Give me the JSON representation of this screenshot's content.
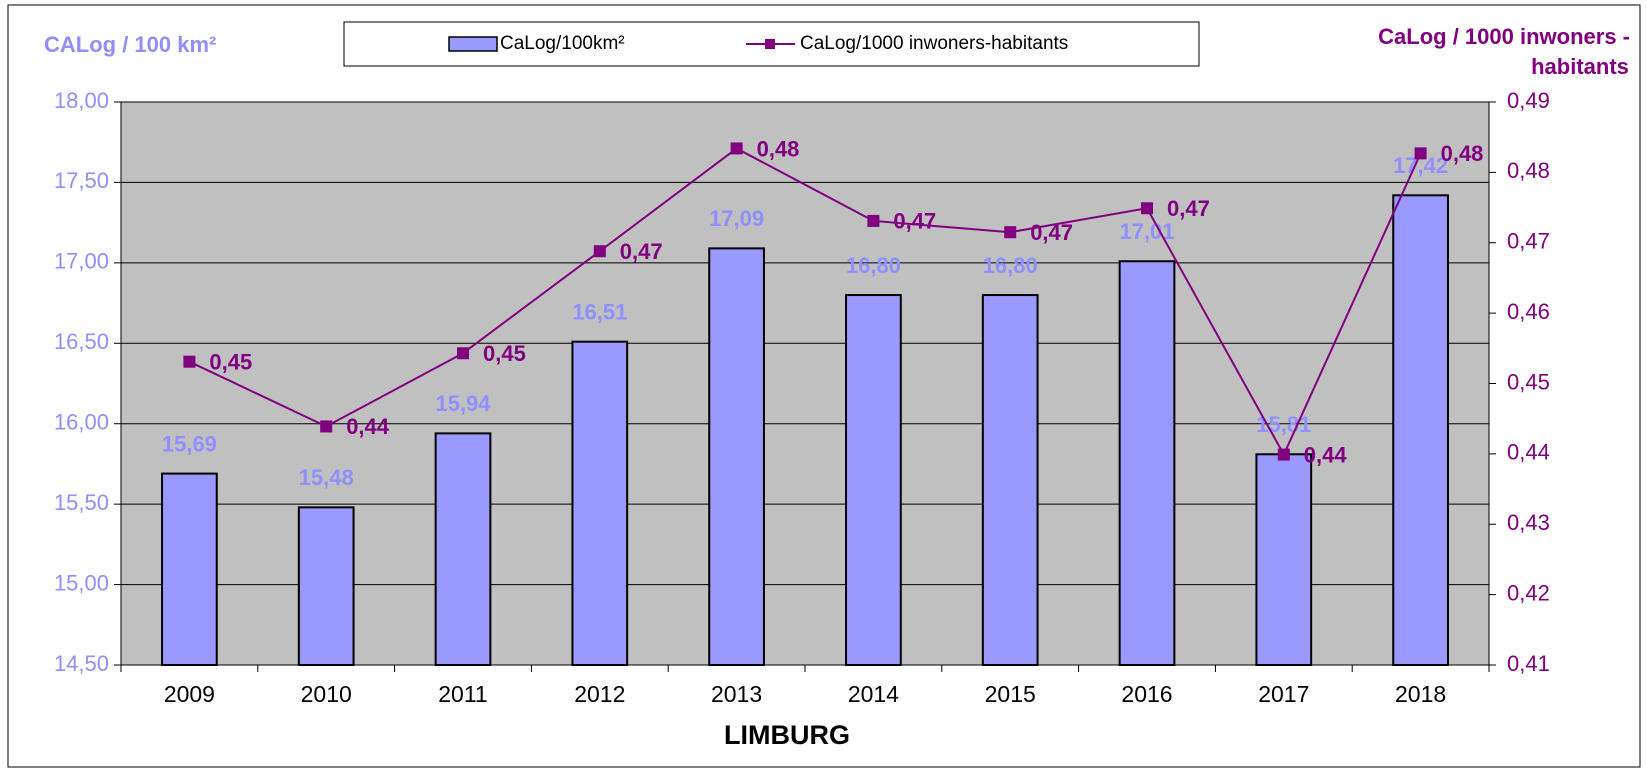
{
  "chart_data": {
    "type": "bar_line",
    "title": "LIMBURG",
    "ylabel": "CALog / 100 km²",
    "y2label": [
      "CaLog / 1000 inwoners -",
      "habitants"
    ],
    "categories": [
      "2009",
      "2010",
      "2011",
      "2012",
      "2013",
      "2014",
      "2015",
      "2016",
      "2017",
      "2018"
    ],
    "series": [
      {
        "name": "CaLog/100km²",
        "type": "bar",
        "color": "#9999ff",
        "label_color": "#8f8fff",
        "values": [
          15.69,
          15.48,
          15.94,
          16.51,
          17.09,
          16.8,
          16.8,
          17.01,
          15.81,
          17.42
        ],
        "value_labels": [
          "15,69",
          "15,48",
          "15,94",
          "16,51",
          "17,09",
          "16,80",
          "16,80",
          "17,01",
          "15,81",
          "17,42"
        ]
      },
      {
        "name": "CaLog/1000 inwoners-habitants",
        "type": "line",
        "axis": "y2",
        "color": "#800080",
        "values": [
          0.4531,
          0.4439,
          0.4543,
          0.4688,
          0.4834,
          0.4731,
          0.4715,
          0.4749,
          0.4399,
          0.4827
        ],
        "value_labels": [
          "0,45",
          "0,44",
          "0,45",
          "0,47",
          "0,48",
          "0,47",
          "0,47",
          "0,47",
          "0,44",
          "0,48"
        ]
      }
    ],
    "ylim": [
      14.5,
      18.0
    ],
    "yticks": [
      {
        "value": 14.5,
        "label": "14,50"
      },
      {
        "value": 15.0,
        "label": "15,00"
      },
      {
        "value": 15.5,
        "label": "15,50"
      },
      {
        "value": 16.0,
        "label": "16,00"
      },
      {
        "value": 16.5,
        "label": "16,50"
      },
      {
        "value": 17.0,
        "label": "17,00"
      },
      {
        "value": 17.5,
        "label": "17,50"
      },
      {
        "value": 18.0,
        "label": "18,00"
      }
    ],
    "y2lim": [
      0.41,
      0.49
    ],
    "y2ticks": [
      {
        "value": 0.41,
        "label": "0,41"
      },
      {
        "value": 0.42,
        "label": "0,42"
      },
      {
        "value": 0.43,
        "label": "0,43"
      },
      {
        "value": 0.44,
        "label": "0,44"
      },
      {
        "value": 0.45,
        "label": "0,45"
      },
      {
        "value": 0.46,
        "label": "0,46"
      },
      {
        "value": 0.47,
        "label": "0,47"
      },
      {
        "value": 0.48,
        "label": "0,48"
      },
      {
        "value": 0.49,
        "label": "0,49"
      }
    ],
    "grid": true,
    "legend": "top"
  }
}
